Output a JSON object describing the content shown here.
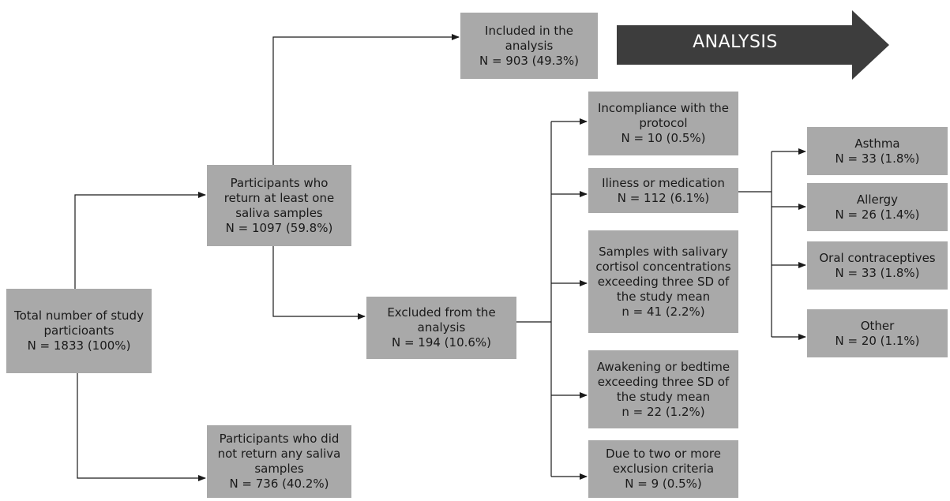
{
  "nodes": {
    "total": {
      "lines": [
        "Total number of study",
        "particioants",
        "N = 1833 (100%)"
      ]
    },
    "returned": {
      "lines": [
        "Participants who",
        "return at least one",
        "saliva samples",
        "N = 1097 (59.8%)"
      ]
    },
    "not_returned": {
      "lines": [
        "Participants who did",
        "not return any saliva",
        "samples",
        "N = 736 (40.2%)"
      ]
    },
    "included": {
      "lines": [
        "Included in the",
        "analysis",
        "N = 903 (49.3%)"
      ]
    },
    "excluded": {
      "lines": [
        "Excluded from the",
        "analysis",
        "N = 194 (10.6%)"
      ]
    },
    "incompliance": {
      "lines": [
        "Incompliance with the",
        "protocol",
        "N = 10 (0.5%)"
      ]
    },
    "illness": {
      "lines": [
        "Iliness or medication",
        "N = 112 (6.1%)"
      ]
    },
    "cortisol": {
      "lines": [
        "Samples with salivary",
        "cortisol concentrations",
        "exceeding three SD of",
        "the study mean",
        "n = 41 (2.2%)"
      ]
    },
    "awakening": {
      "lines": [
        "Awakening or bedtime",
        "exceeding three SD of",
        "the study mean",
        "n = 22 (1.2%)"
      ]
    },
    "two_or_more": {
      "lines": [
        "Due to two or more",
        "exclusion criteria",
        "N = 9 (0.5%)"
      ]
    },
    "asthma": {
      "lines": [
        "Asthma",
        "N = 33 (1.8%)"
      ]
    },
    "allergy": {
      "lines": [
        "Allergy",
        "N = 26 (1.4%)"
      ]
    },
    "oral_contraceptives": {
      "lines": [
        "Oral contraceptives",
        "N = 33 (1.8%)"
      ]
    },
    "other": {
      "lines": [
        "Other",
        "N = 20 (1.1%)"
      ]
    }
  },
  "analysis_arrow": {
    "label": "ANALYSIS",
    "color": "#3d3d3d"
  },
  "colors": {
    "box": "#a9a9a9",
    "line": "#1a1a1a"
  }
}
